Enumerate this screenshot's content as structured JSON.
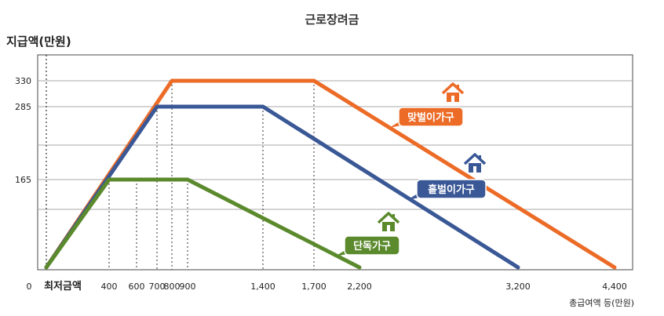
{
  "chart_data": {
    "type": "line",
    "title": "근로장려금",
    "ylabel": "지급액(만원)",
    "xlabel": "총급여액 등(만원)",
    "x_origin_label": "0",
    "x_origin_text": "최저금액",
    "x_ticks": [
      {
        "label": "400",
        "value": 400
      },
      {
        "label": "600",
        "value": 600
      },
      {
        "label": "700",
        "value": 700
      },
      {
        "label": "800",
        "value": 800
      },
      {
        "label": "900",
        "value": 900
      },
      {
        "label": "1,400",
        "value": 1400
      },
      {
        "label": "1,700",
        "value": 1700
      },
      {
        "label": "2,200",
        "value": 2200
      },
      {
        "label": "3,200",
        "value": 3200
      },
      {
        "label": "4,400",
        "value": 4400
      }
    ],
    "y_ticks": [
      {
        "label": "165",
        "value": 165
      },
      {
        "label": "285",
        "value": 285
      },
      {
        "label": "330",
        "value": 330
      }
    ],
    "grid_values": [
      110,
      165,
      220,
      285,
      330
    ],
    "xlim": [
      0,
      4400
    ],
    "ylim": [
      0,
      375
    ],
    "series": [
      {
        "name": "맞벌이가구",
        "color": "#ec6b27",
        "points": [
          [
            0,
            0
          ],
          [
            800,
            330
          ],
          [
            1700,
            330
          ],
          [
            4400,
            0
          ]
        ]
      },
      {
        "name": "홑벌이가구",
        "color": "#3a5896",
        "points": [
          [
            0,
            0
          ],
          [
            700,
            285
          ],
          [
            1400,
            285
          ],
          [
            3200,
            0
          ]
        ]
      },
      {
        "name": "단독가구",
        "color": "#5b8a2d",
        "points": [
          [
            0,
            0
          ],
          [
            400,
            165
          ],
          [
            900,
            165
          ],
          [
            2200,
            0
          ]
        ]
      }
    ],
    "dotted_guides": [
      {
        "x": 400,
        "y": 165
      },
      {
        "x": 600,
        "y": 165
      },
      {
        "x": 700,
        "y": 285
      },
      {
        "x": 800,
        "y": 330
      },
      {
        "x": 900,
        "y": 165
      },
      {
        "x": 1400,
        "y": 285
      },
      {
        "x": 1700,
        "y": 330
      }
    ],
    "grid": true
  }
}
